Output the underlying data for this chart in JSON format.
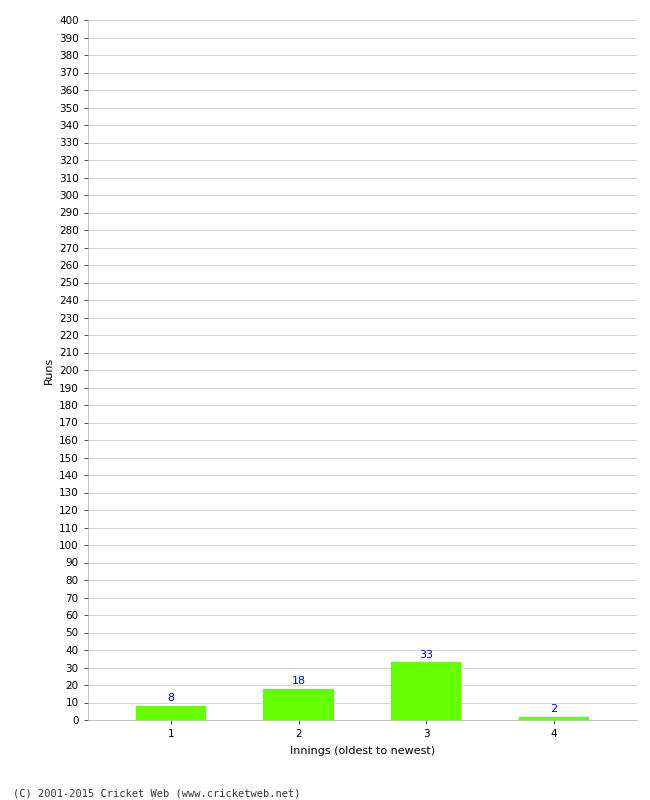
{
  "innings": [
    1,
    2,
    3,
    4
  ],
  "runs": [
    8,
    18,
    33,
    2
  ],
  "bar_color": "#66ff00",
  "bar_edge_color": "#66ff00",
  "label_color": "#0000cc",
  "xlabel": "Innings (oldest to newest)",
  "ylabel": "Runs",
  "ylim": [
    0,
    400
  ],
  "title": "",
  "background_color": "#ffffff",
  "grid_color": "#cccccc",
  "footer_text": "(C) 2001-2015 Cricket Web (www.cricketweb.net)",
  "label_fontsize": 8,
  "axis_label_fontsize": 8,
  "tick_fontsize": 7.5,
  "footer_fontsize": 7.5
}
